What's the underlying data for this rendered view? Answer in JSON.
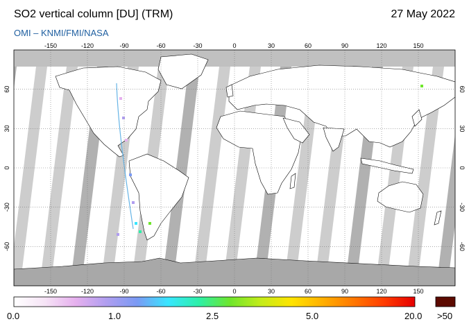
{
  "header": {
    "title": "SO2 vertical column [DU] (TRM)",
    "subtitle": "OMI  –  KNMI/FMI/NASA",
    "date": "27 May 2022"
  },
  "map": {
    "projection": "equirectangular",
    "lon_range": [
      -180,
      180
    ],
    "lat_range": [
      -90,
      90
    ],
    "lon_ticks": [
      "-150",
      "-120",
      "-90",
      "-60",
      "-30",
      "0",
      "30",
      "60",
      "90",
      "120",
      "150"
    ],
    "lat_ticks": [
      "60",
      "30",
      "0",
      "-30",
      "-60"
    ],
    "colors": {
      "ocean_gap": "#c8c8c8",
      "dark_swath": "#a8a8a8",
      "land_fill": "#ffffff",
      "polar": "#b4b4b4"
    }
  },
  "colorbar": {
    "labels": [
      "0.0",
      "1.0",
      "2.5",
      "5.0",
      "20.0"
    ],
    "overflow_label": ">50",
    "overflow_color": "#5c0a00",
    "colors": [
      "#ffffff",
      "#f6e4f6",
      "#e6b0ee",
      "#b09ef0",
      "#7a9af4",
      "#38e6ff",
      "#2cf0a8",
      "#6ee62c",
      "#c4ec1a",
      "#ffe400",
      "#ffb000",
      "#ff7800",
      "#ff3c00",
      "#e60000"
    ]
  }
}
